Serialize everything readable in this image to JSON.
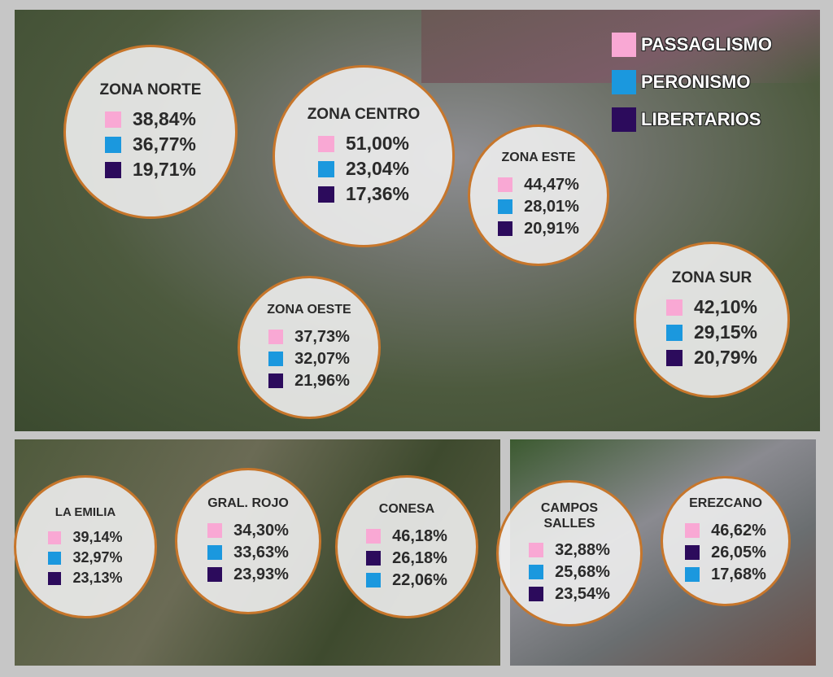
{
  "legend": [
    {
      "label": "PASSAGLISMO",
      "color": "#f9a8d4"
    },
    {
      "label": "PERONISMO",
      "color": "#1b98de"
    },
    {
      "label": "LIBERTARIOS",
      "color": "#2c0b5c"
    }
  ],
  "zones": [
    {
      "name": "ZONA NORTE",
      "rows": [
        {
          "color": "#f9a8d4",
          "value": "38,84%"
        },
        {
          "color": "#1b98de",
          "value": "36,77%"
        },
        {
          "color": "#2c0b5c",
          "value": "19,71%"
        }
      ]
    },
    {
      "name": "ZONA CENTRO",
      "rows": [
        {
          "color": "#f9a8d4",
          "value": "51,00%"
        },
        {
          "color": "#1b98de",
          "value": "23,04%"
        },
        {
          "color": "#2c0b5c",
          "value": "17,36%"
        }
      ]
    },
    {
      "name": "ZONA ESTE",
      "rows": [
        {
          "color": "#f9a8d4",
          "value": "44,47%"
        },
        {
          "color": "#1b98de",
          "value": "28,01%"
        },
        {
          "color": "#2c0b5c",
          "value": "20,91%"
        }
      ]
    },
    {
      "name": "ZONA OESTE",
      "rows": [
        {
          "color": "#f9a8d4",
          "value": "37,73%"
        },
        {
          "color": "#1b98de",
          "value": "32,07%"
        },
        {
          "color": "#2c0b5c",
          "value": "21,96%"
        }
      ]
    },
    {
      "name": "ZONA SUR",
      "rows": [
        {
          "color": "#f9a8d4",
          "value": "42,10%"
        },
        {
          "color": "#1b98de",
          "value": "29,15%"
        },
        {
          "color": "#2c0b5c",
          "value": "20,79%"
        }
      ]
    },
    {
      "name": "LA EMILIA",
      "rows": [
        {
          "color": "#f9a8d4",
          "value": "39,14%"
        },
        {
          "color": "#1b98de",
          "value": "32,97%"
        },
        {
          "color": "#2c0b5c",
          "value": "23,13%"
        }
      ]
    },
    {
      "name": "GRAL. ROJO",
      "rows": [
        {
          "color": "#f9a8d4",
          "value": "34,30%"
        },
        {
          "color": "#1b98de",
          "value": "33,63%"
        },
        {
          "color": "#2c0b5c",
          "value": "23,93%"
        }
      ]
    },
    {
      "name": "CONESA",
      "rows": [
        {
          "color": "#f9a8d4",
          "value": "46,18%"
        },
        {
          "color": "#2c0b5c",
          "value": "26,18%"
        },
        {
          "color": "#1b98de",
          "value": "22,06%"
        }
      ]
    },
    {
      "name": "CAMPOS SALLES",
      "rows": [
        {
          "color": "#f9a8d4",
          "value": "32,88%"
        },
        {
          "color": "#1b98de",
          "value": "25,68%"
        },
        {
          "color": "#2c0b5c",
          "value": "23,54%"
        }
      ]
    },
    {
      "name": "EREZCANO",
      "rows": [
        {
          "color": "#f9a8d4",
          "value": "46,62%"
        },
        {
          "color": "#2c0b5c",
          "value": "26,05%"
        },
        {
          "color": "#1b98de",
          "value": "17,68%"
        }
      ]
    }
  ]
}
